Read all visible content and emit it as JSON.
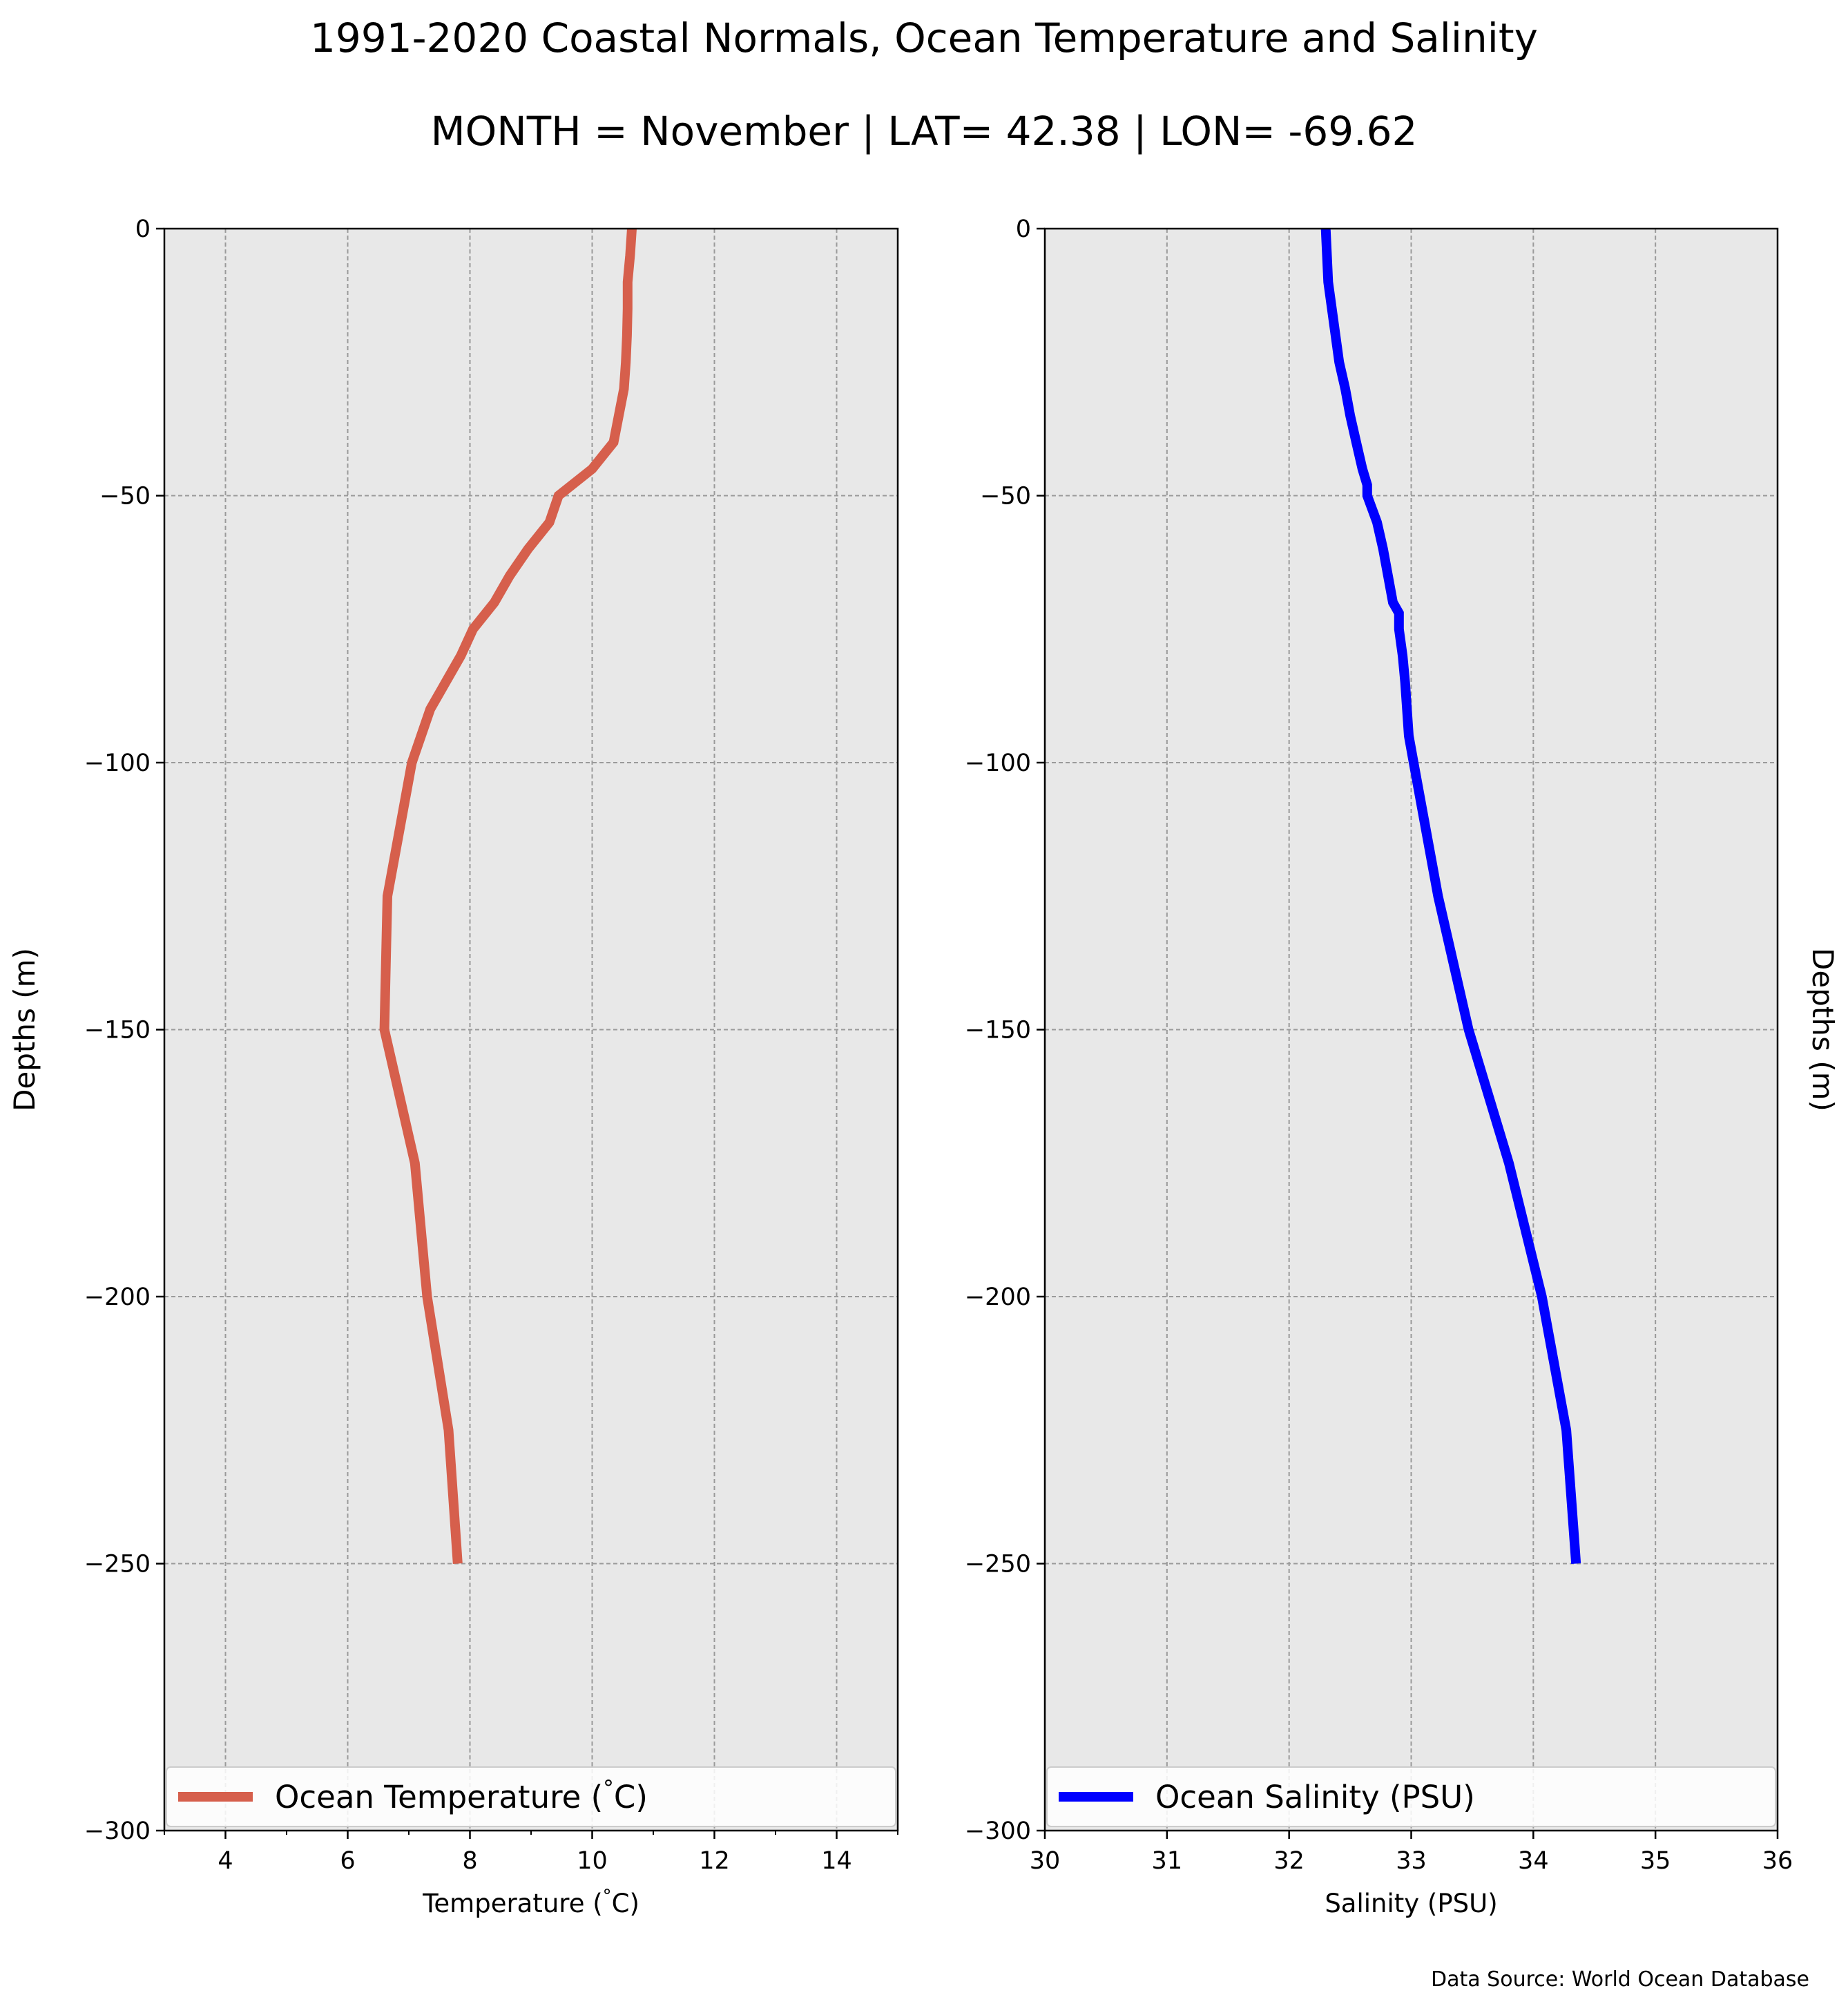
{
  "title": "1991-2020 Coastal Normals, Ocean Temperature and Salinity",
  "subtitle": "MONTH = November | LAT= 42.38 | LON= -69.62",
  "source": "Data Source: World Ocean Database",
  "colors": {
    "temperature": "#d65f4c",
    "salinity": "#0000ff",
    "panel_bg": "#e8e8e8",
    "grid": "#9a9a9a"
  },
  "chart_data": [
    {
      "type": "line",
      "xlabel": "Temperature ($^\\circ$C)",
      "ylabel": "Depths (m)",
      "xlim": [
        3,
        15
      ],
      "ylim": [
        -300,
        0
      ],
      "xticks": [
        4,
        6,
        8,
        10,
        12,
        14
      ],
      "yticks": [
        0,
        -50,
        -100,
        -150,
        -200,
        -250,
        -300
      ],
      "grid": true,
      "legend": "lower-left",
      "series": [
        {
          "name": "Ocean Temperature ($^\\circ$C)",
          "color": "#d65f4c",
          "x": [
            10.65,
            10.62,
            10.58,
            10.58,
            10.57,
            10.55,
            10.52,
            10.35,
            10.0,
            9.45,
            9.3,
            8.95,
            8.65,
            8.4,
            8.05,
            7.85,
            7.6,
            7.35,
            7.2,
            7.05,
            6.65,
            6.6,
            7.1,
            7.3,
            7.65,
            7.8
          ],
          "y": [
            0,
            -5,
            -10,
            -15,
            -20,
            -25,
            -30,
            -40,
            -45,
            -50,
            -55,
            -60,
            -65,
            -70,
            -75,
            -80,
            -85,
            -90,
            -95,
            -100,
            -125,
            -150,
            -175,
            -200,
            -225,
            -250
          ]
        }
      ]
    },
    {
      "type": "line",
      "xlabel": "Salinity (PSU)",
      "ylabel": "Depths (m)",
      "xlim": [
        30,
        36
      ],
      "ylim": [
        -300,
        0
      ],
      "xticks": [
        30,
        31,
        32,
        33,
        34,
        35,
        36
      ],
      "yticks": [
        0,
        -50,
        -100,
        -150,
        -200,
        -250,
        -300
      ],
      "grid": true,
      "legend": "lower-left",
      "series": [
        {
          "name": "Ocean Salinity (PSU)",
          "color": "#0000ff",
          "x": [
            32.3,
            32.31,
            32.32,
            32.35,
            32.38,
            32.41,
            32.46,
            32.5,
            32.55,
            32.6,
            32.64,
            32.64,
            32.72,
            32.77,
            32.81,
            32.85,
            32.9,
            32.9,
            32.93,
            32.95,
            32.98,
            33.02,
            33.22,
            33.47,
            33.8,
            34.07,
            34.27,
            34.35
          ],
          "y": [
            0,
            -5,
            -10,
            -15,
            -20,
            -25,
            -30,
            -35,
            -40,
            -45,
            -48,
            -50,
            -55,
            -60,
            -65,
            -70,
            -72,
            -75,
            -80,
            -85,
            -95,
            -100,
            -125,
            -150,
            -175,
            -200,
            -225,
            -250
          ]
        }
      ]
    }
  ]
}
